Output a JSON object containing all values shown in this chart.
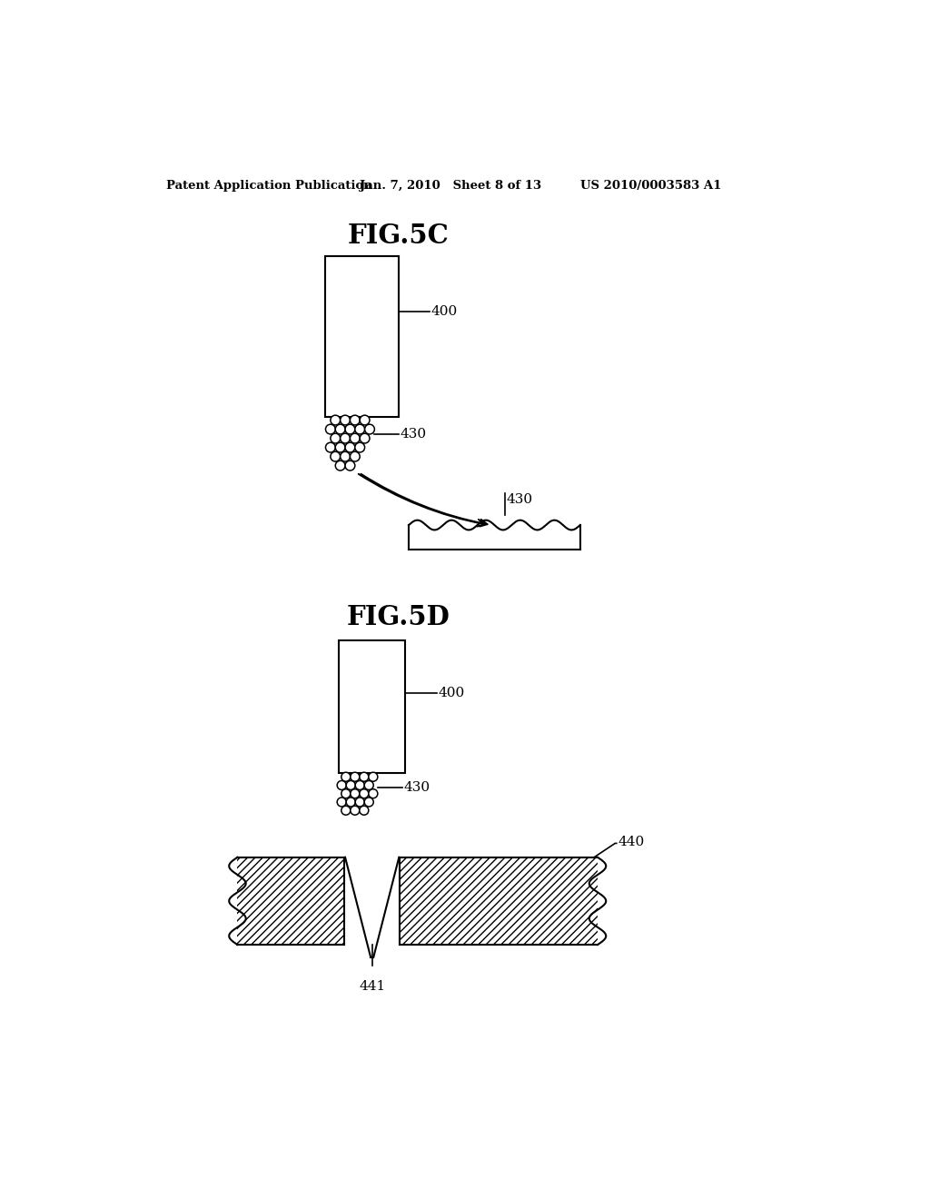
{
  "bg_color": "#ffffff",
  "header_left": "Patent Application Publication",
  "header_mid": "Jan. 7, 2010   Sheet 8 of 13",
  "header_right": "US 2010/0003583 A1",
  "fig5c_title": "FIG.5C",
  "fig5d_title": "FIG.5D",
  "label_400_5c": "400",
  "label_430_5c_top": "430",
  "label_430_5c_bot": "430",
  "label_400_5d": "400",
  "label_430_5d": "430",
  "label_440": "440",
  "label_441": "441",
  "line_color": "#000000",
  "lw": 1.5
}
